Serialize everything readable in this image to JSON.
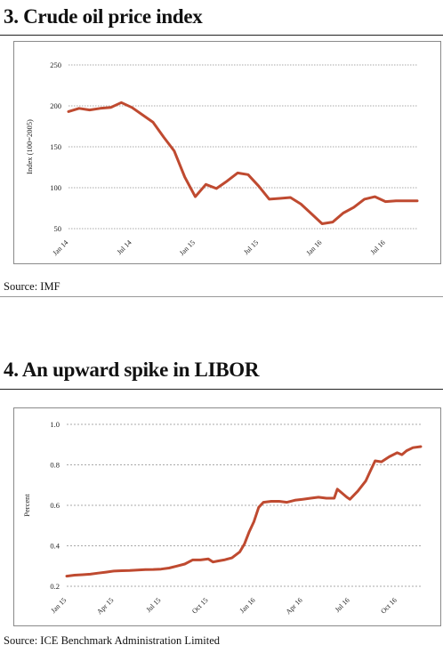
{
  "charts": {
    "oil": {
      "title": "3. Crude oil price index",
      "source": "Source: IMF"
    },
    "libor": {
      "title": "4. An upward spike in LIBOR",
      "source": "Source: ICE Benchmark Administration Limited"
    }
  },
  "colors": {
    "line": "#bf4a30",
    "grid": "#8c8c8c",
    "axis": "#555555"
  },
  "chart_data": [
    {
      "type": "line",
      "title": "3. Crude oil price index",
      "ylabel": "Index (100=2005)",
      "xlabel": "",
      "ylim": [
        50,
        250
      ],
      "yticks": [
        50,
        100,
        150,
        200,
        250
      ],
      "grid": "horizontal",
      "x_tick_labels": [
        "Jan 14",
        "Jul 14",
        "Jan 15",
        "Jul 15",
        "Jan 16",
        "Jul 16"
      ],
      "x_tick_months": [
        0,
        6,
        12,
        18,
        24,
        30
      ],
      "series": [
        {
          "x_month": [
            0,
            1,
            2,
            3,
            4,
            5,
            6,
            7,
            8,
            9,
            10,
            11,
            12,
            13,
            14,
            15,
            16,
            17,
            18,
            19,
            20,
            21,
            22,
            23,
            24,
            25,
            26,
            27,
            28,
            29,
            30,
            31,
            32,
            33
          ],
          "values": [
            193,
            197,
            195,
            197,
            198,
            204,
            198,
            189,
            180,
            162,
            145,
            113,
            89,
            104,
            99,
            108,
            118,
            116,
            102,
            86,
            87,
            88,
            80,
            68,
            56,
            58,
            69,
            76,
            86,
            89,
            83,
            84,
            84,
            84
          ]
        }
      ]
    },
    {
      "type": "line",
      "title": "4. An upward spike in LIBOR",
      "ylabel": "Percent",
      "xlabel": "",
      "ylim": [
        0.2,
        1.0
      ],
      "yticks": [
        0.2,
        0.4,
        0.6,
        0.8,
        1.0
      ],
      "ytick_labels": [
        "0.2",
        "0.4",
        "0.6",
        "0.8",
        "1.0"
      ],
      "grid": "horizontal dashed",
      "x_tick_labels": [
        "Jan 15",
        "Apr 15",
        "Jul 15",
        "Oct 15",
        "Jan 16",
        "Apr 16",
        "Jul 16",
        "Oct 16"
      ],
      "x_tick_months": [
        0,
        3,
        6,
        9,
        12,
        15,
        18,
        21
      ],
      "series": [
        {
          "x_month": [
            0,
            0.5,
            1,
            1.5,
            2,
            2.5,
            3,
            3.5,
            4,
            4.5,
            5,
            5.5,
            6,
            6.5,
            7,
            7.5,
            8,
            8.5,
            9,
            9.3,
            9.6,
            10,
            10.5,
            11,
            11.3,
            11.6,
            11.9,
            12.2,
            12.5,
            13,
            13.5,
            14,
            14.5,
            15,
            15.5,
            16,
            16.5,
            17,
            17.2,
            17.5,
            17.8,
            18,
            18.5,
            19,
            19.3,
            19.6,
            20,
            20.5,
            21,
            21.3,
            21.6,
            22,
            22.5
          ],
          "values": [
            0.25,
            0.255,
            0.257,
            0.26,
            0.265,
            0.27,
            0.275,
            0.277,
            0.278,
            0.28,
            0.282,
            0.283,
            0.285,
            0.29,
            0.3,
            0.31,
            0.33,
            0.33,
            0.335,
            0.32,
            0.325,
            0.33,
            0.34,
            0.37,
            0.41,
            0.47,
            0.52,
            0.59,
            0.615,
            0.62,
            0.62,
            0.615,
            0.625,
            0.63,
            0.635,
            0.64,
            0.635,
            0.635,
            0.68,
            0.66,
            0.64,
            0.63,
            0.67,
            0.72,
            0.77,
            0.82,
            0.815,
            0.84,
            0.86,
            0.85,
            0.87,
            0.885,
            0.89
          ]
        }
      ]
    }
  ]
}
